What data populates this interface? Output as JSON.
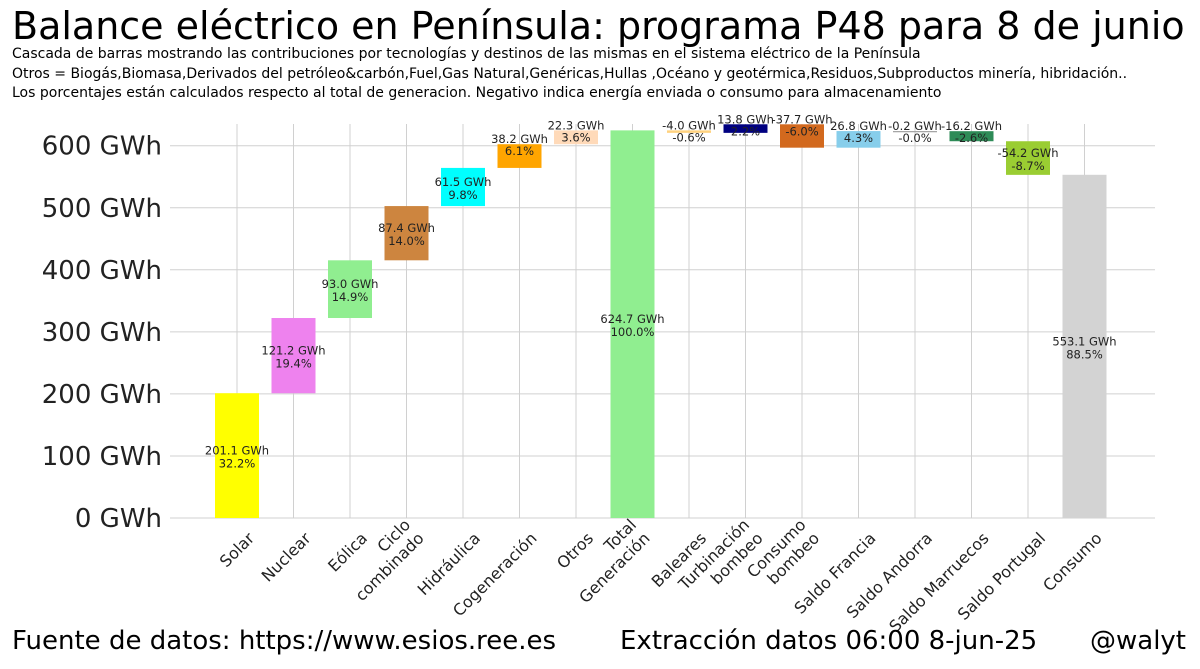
{
  "title": "Balance eléctrico en Península: programa P48 para 8 de junio",
  "subtitles": [
    "Cascada de barras mostrando las contribuciones por tecnologías y destinos de las mismas en el sistema eléctrico de la Península",
    "Otros = Biogás,Biomasa,Derivados del petróleo&carbón,Fuel,Gas Natural,Genéricas,Hullas ,Océano y geotérmica,Residuos,Subproductos minería, hibridación..",
    "Los porcentajes están calculados respecto al total de generacion. Negativo indica energía enviada o consumo para almacenamiento"
  ],
  "footer": {
    "source": "Fuente de datos: https://www.esios.ree.es",
    "extraction": "Extracción datos 06:00 8-jun-25",
    "handle": "@walyt"
  },
  "chart_data": {
    "type": "waterfall",
    "unit": "GWh",
    "ylim": [
      0,
      640
    ],
    "yticks": [
      0,
      100,
      200,
      300,
      400,
      500,
      600
    ],
    "ytick_labels": [
      "0 GWh",
      "100 GWh",
      "200 GWh",
      "300 GWh",
      "400 GWh",
      "500 GWh",
      "600 GWh"
    ],
    "grid": true,
    "bars": [
      {
        "category": "Solar",
        "start": 0,
        "end": 201.1,
        "label": "201.1 GWh",
        "pct": "32.2%",
        "color": "#ffff00"
      },
      {
        "category": "Nuclear",
        "start": 201.1,
        "end": 322.3,
        "label": "121.2 GWh",
        "pct": "19.4%",
        "color": "#ee82ee"
      },
      {
        "category": "Eólica",
        "start": 322.3,
        "end": 415.3,
        "label": "93.0 GWh",
        "pct": "14.9%",
        "color": "#90ee90"
      },
      {
        "category": "Ciclo combinado",
        "start": 415.3,
        "end": 502.7,
        "label": "87.4 GWh",
        "pct": "14.0%",
        "color": "#cd853f"
      },
      {
        "category": "Hidráulica",
        "start": 502.7,
        "end": 564.2,
        "label": "61.5 GWh",
        "pct": "9.8%",
        "color": "#00ffff"
      },
      {
        "category": "Cogeneración",
        "start": 564.2,
        "end": 602.4,
        "label": "38.2 GWh",
        "pct": "6.1%",
        "color": "#ffa500"
      },
      {
        "category": "Otros",
        "start": 602.4,
        "end": 624.7,
        "label": "22.3 GWh",
        "pct": "3.6%",
        "color": "#ffdab9"
      },
      {
        "category": "Total Generación",
        "start": 0,
        "end": 624.7,
        "label": "624.7 GWh",
        "pct": "100.0%",
        "color": "#90ee90"
      },
      {
        "category": "Baleares",
        "start": 624.7,
        "end": 620.7,
        "label": "-4.0 GWh",
        "pct": "-0.6%",
        "color": "#ffd27f"
      },
      {
        "category": "Turbinación bombeo",
        "start": 620.7,
        "end": 634.5,
        "label": "13.8 GWh",
        "pct": "2.2%",
        "color": "#000080"
      },
      {
        "category": "Consumo bombeo",
        "start": 634.5,
        "end": 596.8,
        "label": "-37.7 GWh",
        "pct": "-6.0%",
        "color": "#d2691e"
      },
      {
        "category": "Saldo Francia",
        "start": 596.8,
        "end": 623.6,
        "label": "26.8 GWh",
        "pct": "4.3%",
        "color": "#87ceeb"
      },
      {
        "category": "Saldo Andorra",
        "start": 623.6,
        "end": 623.4,
        "label": "-0.2 GWh",
        "pct": "-0.0%",
        "color": "#a0a0a0"
      },
      {
        "category": "Saldo Marruecos",
        "start": 623.4,
        "end": 607.2,
        "label": "-16.2 GWh",
        "pct": "-2.6%",
        "color": "#2e8b57"
      },
      {
        "category": "Saldo Portugal",
        "start": 607.2,
        "end": 553.0,
        "label": "-54.2 GWh",
        "pct": "-8.7%",
        "color": "#9acd32"
      },
      {
        "category": "Consumo",
        "start": 0,
        "end": 553.1,
        "label": "553.1 GWh",
        "pct": "88.5%",
        "color": "#d3d3d3"
      }
    ],
    "x_tick_lines": [
      [
        "Solar"
      ],
      [
        "Nuclear"
      ],
      [
        "Eólica"
      ],
      [
        "Ciclo",
        "combinado"
      ],
      [
        "Hidráulica"
      ],
      [
        "Cogeneración"
      ],
      [
        "Otros"
      ],
      [
        "Total",
        "Generación"
      ],
      [
        "Baleares"
      ],
      [
        "Turbinación",
        "bombeo"
      ],
      [
        "Consumo",
        "bombeo"
      ],
      [
        "Saldo Francia"
      ],
      [
        "Saldo Andorra"
      ],
      [
        "Saldo Marruecos"
      ],
      [
        "Saldo Portugal"
      ],
      [
        "Consumo"
      ]
    ]
  }
}
